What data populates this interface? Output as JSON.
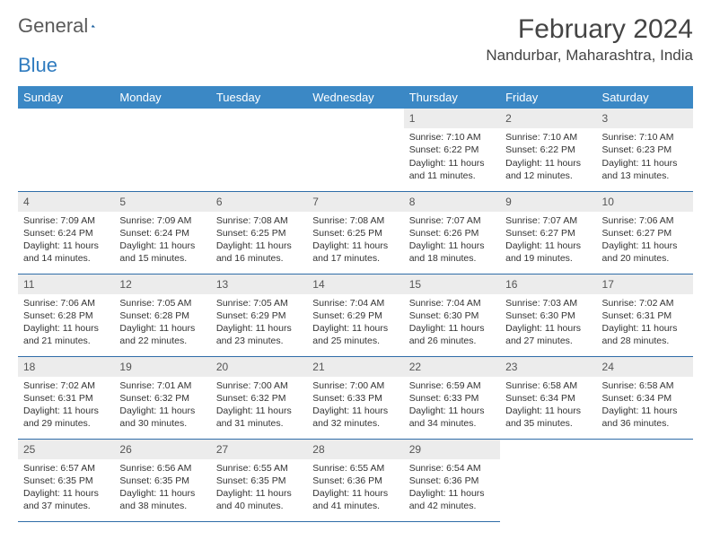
{
  "logo": {
    "text1": "General",
    "text2": "Blue",
    "accent_color": "#2f7bbf",
    "gray_color": "#5a5a5a"
  },
  "title": "February 2024",
  "location": "Nandurbar, Maharashtra, India",
  "header_bg": "#3b88c5",
  "border_color": "#2f6da8",
  "daynum_bg": "#ececec",
  "weekdays": [
    "Sunday",
    "Monday",
    "Tuesday",
    "Wednesday",
    "Thursday",
    "Friday",
    "Saturday"
  ],
  "weeks": [
    [
      null,
      null,
      null,
      null,
      {
        "n": "1",
        "sr": "Sunrise: 7:10 AM",
        "ss": "Sunset: 6:22 PM",
        "dl": "Daylight: 11 hours and 11 minutes."
      },
      {
        "n": "2",
        "sr": "Sunrise: 7:10 AM",
        "ss": "Sunset: 6:22 PM",
        "dl": "Daylight: 11 hours and 12 minutes."
      },
      {
        "n": "3",
        "sr": "Sunrise: 7:10 AM",
        "ss": "Sunset: 6:23 PM",
        "dl": "Daylight: 11 hours and 13 minutes."
      }
    ],
    [
      {
        "n": "4",
        "sr": "Sunrise: 7:09 AM",
        "ss": "Sunset: 6:24 PM",
        "dl": "Daylight: 11 hours and 14 minutes."
      },
      {
        "n": "5",
        "sr": "Sunrise: 7:09 AM",
        "ss": "Sunset: 6:24 PM",
        "dl": "Daylight: 11 hours and 15 minutes."
      },
      {
        "n": "6",
        "sr": "Sunrise: 7:08 AM",
        "ss": "Sunset: 6:25 PM",
        "dl": "Daylight: 11 hours and 16 minutes."
      },
      {
        "n": "7",
        "sr": "Sunrise: 7:08 AM",
        "ss": "Sunset: 6:25 PM",
        "dl": "Daylight: 11 hours and 17 minutes."
      },
      {
        "n": "8",
        "sr": "Sunrise: 7:07 AM",
        "ss": "Sunset: 6:26 PM",
        "dl": "Daylight: 11 hours and 18 minutes."
      },
      {
        "n": "9",
        "sr": "Sunrise: 7:07 AM",
        "ss": "Sunset: 6:27 PM",
        "dl": "Daylight: 11 hours and 19 minutes."
      },
      {
        "n": "10",
        "sr": "Sunrise: 7:06 AM",
        "ss": "Sunset: 6:27 PM",
        "dl": "Daylight: 11 hours and 20 minutes."
      }
    ],
    [
      {
        "n": "11",
        "sr": "Sunrise: 7:06 AM",
        "ss": "Sunset: 6:28 PM",
        "dl": "Daylight: 11 hours and 21 minutes."
      },
      {
        "n": "12",
        "sr": "Sunrise: 7:05 AM",
        "ss": "Sunset: 6:28 PM",
        "dl": "Daylight: 11 hours and 22 minutes."
      },
      {
        "n": "13",
        "sr": "Sunrise: 7:05 AM",
        "ss": "Sunset: 6:29 PM",
        "dl": "Daylight: 11 hours and 23 minutes."
      },
      {
        "n": "14",
        "sr": "Sunrise: 7:04 AM",
        "ss": "Sunset: 6:29 PM",
        "dl": "Daylight: 11 hours and 25 minutes."
      },
      {
        "n": "15",
        "sr": "Sunrise: 7:04 AM",
        "ss": "Sunset: 6:30 PM",
        "dl": "Daylight: 11 hours and 26 minutes."
      },
      {
        "n": "16",
        "sr": "Sunrise: 7:03 AM",
        "ss": "Sunset: 6:30 PM",
        "dl": "Daylight: 11 hours and 27 minutes."
      },
      {
        "n": "17",
        "sr": "Sunrise: 7:02 AM",
        "ss": "Sunset: 6:31 PM",
        "dl": "Daylight: 11 hours and 28 minutes."
      }
    ],
    [
      {
        "n": "18",
        "sr": "Sunrise: 7:02 AM",
        "ss": "Sunset: 6:31 PM",
        "dl": "Daylight: 11 hours and 29 minutes."
      },
      {
        "n": "19",
        "sr": "Sunrise: 7:01 AM",
        "ss": "Sunset: 6:32 PM",
        "dl": "Daylight: 11 hours and 30 minutes."
      },
      {
        "n": "20",
        "sr": "Sunrise: 7:00 AM",
        "ss": "Sunset: 6:32 PM",
        "dl": "Daylight: 11 hours and 31 minutes."
      },
      {
        "n": "21",
        "sr": "Sunrise: 7:00 AM",
        "ss": "Sunset: 6:33 PM",
        "dl": "Daylight: 11 hours and 32 minutes."
      },
      {
        "n": "22",
        "sr": "Sunrise: 6:59 AM",
        "ss": "Sunset: 6:33 PM",
        "dl": "Daylight: 11 hours and 34 minutes."
      },
      {
        "n": "23",
        "sr": "Sunrise: 6:58 AM",
        "ss": "Sunset: 6:34 PM",
        "dl": "Daylight: 11 hours and 35 minutes."
      },
      {
        "n": "24",
        "sr": "Sunrise: 6:58 AM",
        "ss": "Sunset: 6:34 PM",
        "dl": "Daylight: 11 hours and 36 minutes."
      }
    ],
    [
      {
        "n": "25",
        "sr": "Sunrise: 6:57 AM",
        "ss": "Sunset: 6:35 PM",
        "dl": "Daylight: 11 hours and 37 minutes."
      },
      {
        "n": "26",
        "sr": "Sunrise: 6:56 AM",
        "ss": "Sunset: 6:35 PM",
        "dl": "Daylight: 11 hours and 38 minutes."
      },
      {
        "n": "27",
        "sr": "Sunrise: 6:55 AM",
        "ss": "Sunset: 6:35 PM",
        "dl": "Daylight: 11 hours and 40 minutes."
      },
      {
        "n": "28",
        "sr": "Sunrise: 6:55 AM",
        "ss": "Sunset: 6:36 PM",
        "dl": "Daylight: 11 hours and 41 minutes."
      },
      {
        "n": "29",
        "sr": "Sunrise: 6:54 AM",
        "ss": "Sunset: 6:36 PM",
        "dl": "Daylight: 11 hours and 42 minutes."
      },
      null,
      null
    ]
  ]
}
